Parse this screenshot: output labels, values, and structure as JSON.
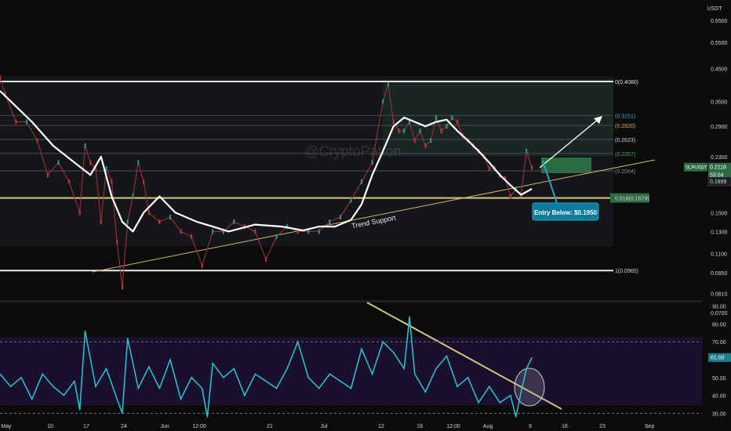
{
  "header": {
    "currency": "USDT"
  },
  "watermark": "@CryptoPatton",
  "chart_data": [
    {
      "type": "line",
      "title": "",
      "symbol_label": "SLPUSDT",
      "price_scale": "log",
      "ylim": [
        0.077,
        0.76
      ],
      "y_ticks": [
        0.65,
        0.55,
        0.45,
        0.35,
        0.29,
        0.23,
        0.19,
        0.15,
        0.13,
        0.11,
        0.095,
        0.081,
        0.07
      ],
      "x_ticks": [
        "May",
        "10",
        "17",
        "24",
        "Jun",
        "12:00",
        "21",
        "Jul",
        "12",
        "19",
        "12:00",
        "Aug",
        "9",
        "16",
        "23",
        "Sep"
      ],
      "last_price": "0.2118",
      "countdown": "53:04",
      "current_value": "0.1899",
      "fib_levels": [
        {
          "label": "0(0.4080)",
          "value": 0.408
        },
        {
          "label": "(0.3151)",
          "value": 0.3151
        },
        {
          "label": "(0.2920)",
          "value": 0.292
        },
        {
          "label": "(0.2623)",
          "value": 0.2623
        },
        {
          "label": "(0.2357)",
          "value": 0.2357
        },
        {
          "label": "(0.2064)",
          "value": 0.2064
        },
        {
          "label": "0.618(0.1679)",
          "value": 0.1679
        },
        {
          "label": "1(0.0965)",
          "value": 0.0965
        }
      ],
      "annotations": {
        "trend_support": "Trend Support",
        "entry_callout": "Entry Below: $0.1950"
      },
      "series": [
        {
          "name": "",
          "type": "moving-average",
          "x_days": [
            0,
            6,
            10,
            14,
            17,
            19,
            21,
            23,
            25,
            27,
            30,
            33,
            37,
            40,
            43,
            48,
            53,
            57,
            60,
            63,
            66,
            68,
            70,
            72,
            74,
            76,
            78,
            80,
            82,
            84,
            86,
            88,
            90,
            92,
            94,
            96,
            98,
            100
          ],
          "values": [
            0.38,
            0.3,
            0.25,
            0.22,
            0.2,
            0.23,
            0.17,
            0.14,
            0.13,
            0.15,
            0.17,
            0.15,
            0.14,
            0.135,
            0.13,
            0.137,
            0.135,
            0.131,
            0.135,
            0.135,
            0.142,
            0.16,
            0.2,
            0.24,
            0.29,
            0.31,
            0.3,
            0.29,
            0.3,
            0.305,
            0.28,
            0.26,
            0.24,
            0.22,
            0.2,
            0.185,
            0.172,
            0.18
          ]
        },
        {
          "name": "",
          "type": "price",
          "x_days": [
            0,
            1,
            3,
            5,
            7,
            9,
            11,
            13,
            15,
            16,
            17,
            18,
            19,
            20,
            21,
            22,
            23,
            24,
            25,
            26,
            27,
            28,
            30,
            32,
            34,
            36,
            38,
            40,
            42,
            44,
            46,
            48,
            50,
            52,
            54,
            56,
            58,
            60,
            62,
            64,
            66,
            68,
            70,
            72,
            73,
            74,
            75,
            76,
            77,
            78,
            79,
            80,
            81,
            82,
            83,
            84,
            85,
            86,
            87,
            88,
            89,
            90,
            91,
            92,
            93,
            94,
            95,
            96,
            97,
            98,
            99,
            100
          ],
          "values": [
            0.42,
            0.37,
            0.3,
            0.3,
            0.26,
            0.2,
            0.22,
            0.19,
            0.15,
            0.25,
            0.22,
            0.21,
            0.14,
            0.21,
            0.19,
            0.12,
            0.085,
            0.14,
            0.17,
            0.22,
            0.19,
            0.15,
            0.14,
            0.145,
            0.13,
            0.125,
            0.1,
            0.13,
            0.13,
            0.14,
            0.135,
            0.13,
            0.105,
            0.125,
            0.135,
            0.13,
            0.13,
            0.13,
            0.14,
            0.145,
            0.165,
            0.19,
            0.22,
            0.35,
            0.4,
            0.3,
            0.28,
            0.28,
            0.3,
            0.26,
            0.28,
            0.25,
            0.26,
            0.31,
            0.28,
            0.29,
            0.31,
            0.3,
            0.27,
            0.26,
            0.25,
            0.24,
            0.23,
            0.21,
            0.21,
            0.2,
            0.195,
            0.17,
            0.18,
            0.172,
            0.24,
            0.2118
          ]
        }
      ]
    },
    {
      "type": "line",
      "title": "",
      "ylim": [
        28,
        92
      ],
      "y_ticks": [
        90.0,
        80.0,
        70.0,
        60.0,
        50.0,
        40.0,
        30.0
      ],
      "reference_lines": [
        70,
        30
      ],
      "current_value": "61.00",
      "series": [
        {
          "name": "",
          "x_days": [
            0,
            2,
            4,
            6,
            8,
            10,
            12,
            14,
            15,
            16,
            18,
            20,
            22,
            23,
            24,
            26,
            28,
            30,
            32,
            34,
            36,
            38,
            39,
            40,
            42,
            44,
            46,
            48,
            50,
            52,
            54,
            56,
            58,
            60,
            62,
            64,
            66,
            68,
            70,
            72,
            74,
            76,
            77,
            78,
            80,
            82,
            84,
            86,
            88,
            90,
            92,
            94,
            96,
            97,
            98,
            99,
            100
          ],
          "values": [
            52,
            45,
            50,
            38,
            52,
            45,
            40,
            48,
            32,
            76,
            45,
            55,
            38,
            30,
            72,
            44,
            56,
            44,
            60,
            38,
            50,
            44,
            28,
            58,
            50,
            55,
            40,
            52,
            48,
            44,
            55,
            70,
            50,
            44,
            52,
            48,
            44,
            66,
            52,
            70,
            64,
            55,
            84,
            52,
            42,
            55,
            62,
            45,
            50,
            36,
            45,
            36,
            40,
            28,
            42,
            55,
            61
          ]
        }
      ]
    }
  ]
}
